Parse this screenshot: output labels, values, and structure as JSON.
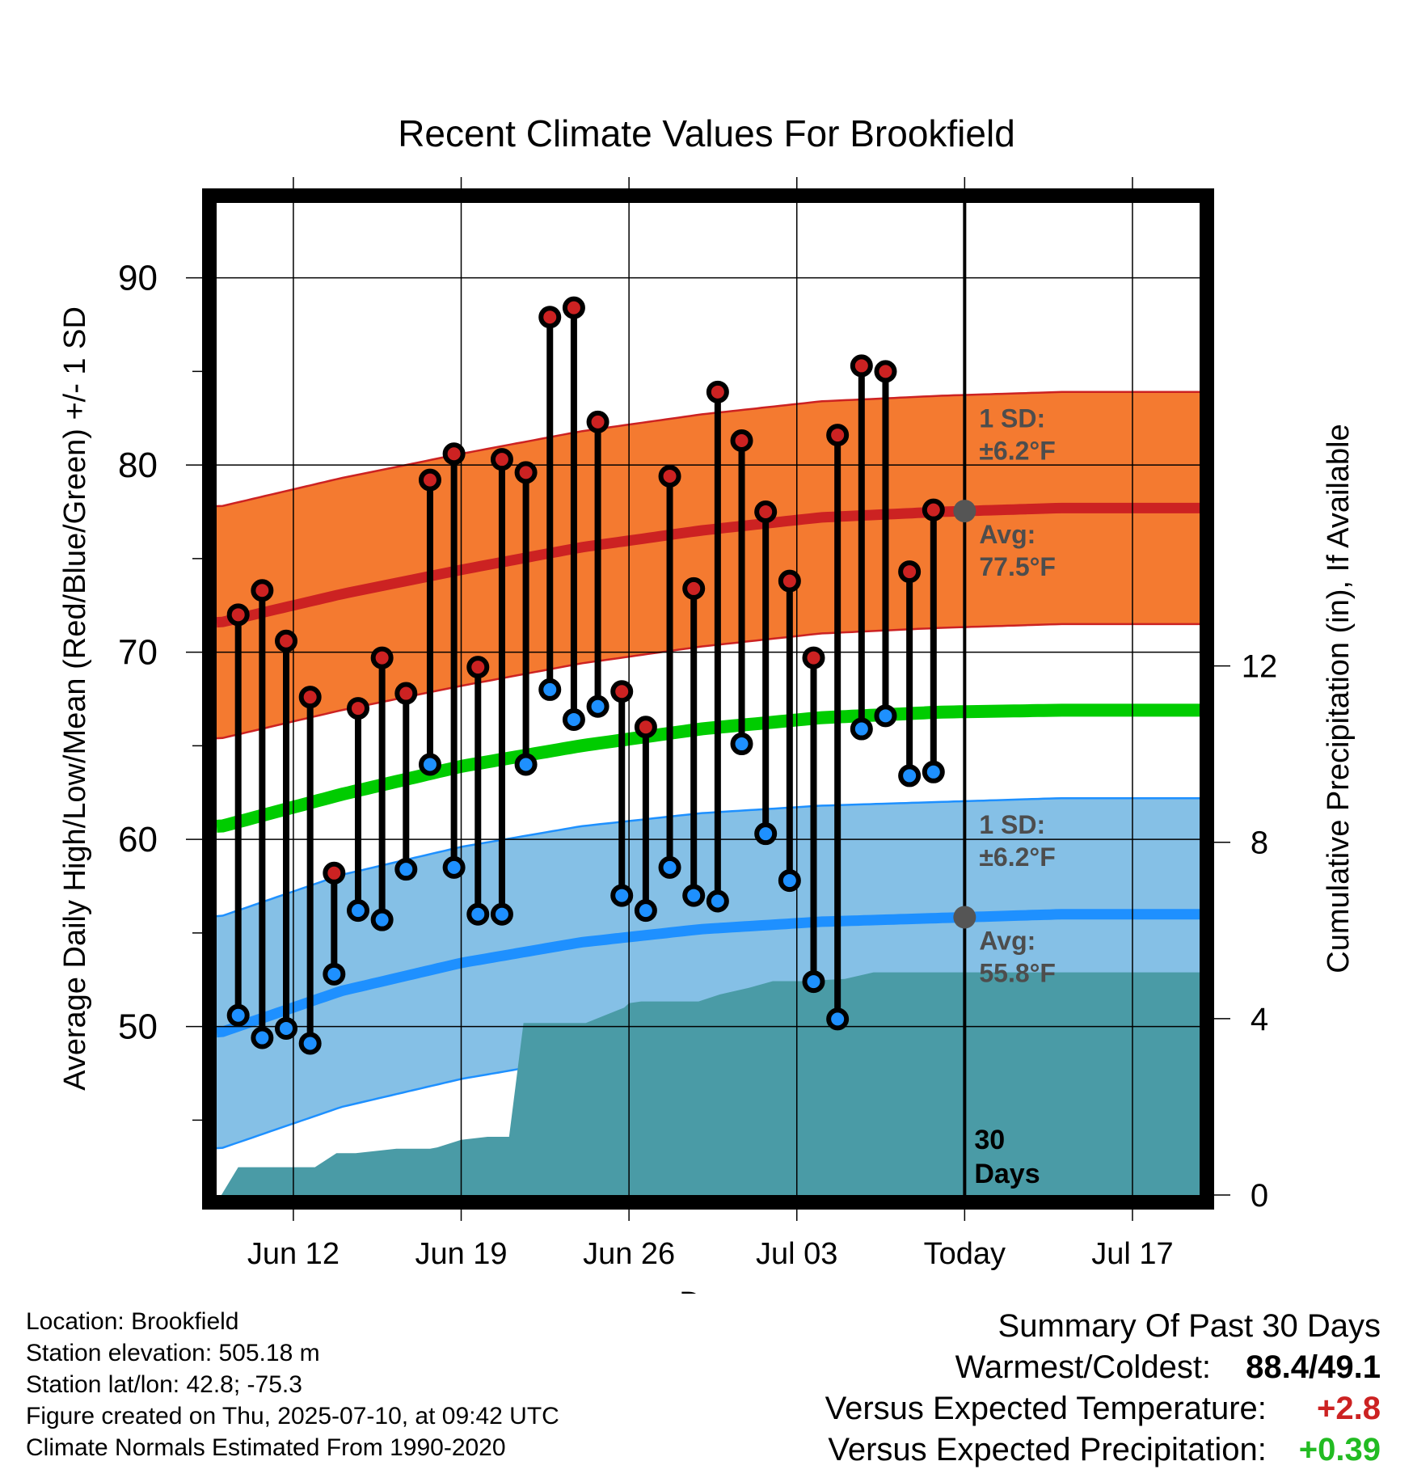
{
  "title": "Recent Climate Values For Brookfield",
  "chart_data": {
    "type": "line",
    "title": "Recent Climate Values For Brookfield",
    "xlabel": "Day",
    "ylabel": "Average Daily High/Low/Mean (Red/Blue/Green) +/- 1 SD",
    "y2label": "Cumulative Precipitation (in), If Available",
    "x_tick_labels": [
      {
        "day": 3,
        "label": "Jun 12"
      },
      {
        "day": 10,
        "label": "Jun 19"
      },
      {
        "day": 17,
        "label": "Jun 26"
      },
      {
        "day": 24,
        "label": "Jul 03"
      },
      {
        "day": 31,
        "label": "Today"
      },
      {
        "day": 38,
        "label": "Jul 17"
      }
    ],
    "xlim": [
      -0.2,
      40.8
    ],
    "ylim": [
      41,
      94
    ],
    "y_ticks": [
      50,
      60,
      70,
      80,
      90
    ],
    "y2_ticks": [
      0,
      4,
      8,
      12
    ],
    "y2lim": [
      0,
      22.5
    ],
    "today_day": 31,
    "today_label": "30 Days",
    "normals": {
      "days": [
        0,
        5,
        10,
        15,
        20,
        25,
        30,
        35,
        40
      ],
      "high_avg": [
        71.6,
        73.1,
        74.4,
        75.6,
        76.5,
        77.2,
        77.5,
        77.7,
        77.7
      ],
      "low_avg": [
        49.7,
        51.9,
        53.4,
        54.5,
        55.2,
        55.6,
        55.8,
        56.0,
        56.0
      ],
      "mean_avg": [
        60.7,
        62.4,
        63.9,
        65.0,
        65.9,
        66.5,
        66.8,
        66.9,
        66.9
      ],
      "high_sd": 6.2,
      "low_sd": 6.2
    },
    "series": [
      {
        "name": "High",
        "color": "#cc2222",
        "days": [
          0.7,
          1.7,
          2.7,
          3.7,
          4.7,
          5.7,
          6.7,
          7.7,
          8.7,
          9.7,
          10.7,
          11.7,
          12.7,
          13.7,
          14.7,
          15.7,
          16.7,
          17.7,
          18.7,
          19.7,
          20.7,
          21.7,
          22.7,
          23.7,
          24.7,
          25.7,
          26.7,
          27.7,
          28.7,
          29.7
        ],
        "values": [
          72.0,
          73.3,
          70.6,
          67.6,
          58.2,
          67.0,
          69.7,
          67.8,
          79.2,
          80.6,
          69.2,
          80.3,
          79.6,
          87.9,
          88.4,
          82.3,
          67.9,
          66.0,
          79.4,
          73.4,
          83.9,
          81.3,
          77.5,
          73.8,
          69.7,
          81.6,
          85.3,
          85.0,
          74.3,
          77.6
        ]
      },
      {
        "name": "Low",
        "color": "#1e90ff",
        "days": [
          0.7,
          1.7,
          2.7,
          3.7,
          4.7,
          5.7,
          6.7,
          7.7,
          8.7,
          9.7,
          10.7,
          11.7,
          12.7,
          13.7,
          14.7,
          15.7,
          16.7,
          17.7,
          18.7,
          19.7,
          20.7,
          21.7,
          22.7,
          23.7,
          24.7,
          25.7,
          26.7,
          27.7,
          28.7,
          29.7
        ],
        "values": [
          50.6,
          49.4,
          49.9,
          49.1,
          52.8,
          56.2,
          55.7,
          58.4,
          64.0,
          58.5,
          56.0,
          56.0,
          64.0,
          68.0,
          66.4,
          67.1,
          57.0,
          56.2,
          58.5,
          57.0,
          56.7,
          65.1,
          60.3,
          57.8,
          52.4,
          50.4,
          65.9,
          66.6,
          63.4,
          63.6
        ]
      },
      {
        "name": "Cumulative Precipitation",
        "color": "#4a9ba6",
        "days": [
          0,
          0.7,
          3.9,
          4.8,
          5.6,
          7.3,
          8.7,
          9.0,
          10.0,
          11.1,
          12.0,
          12.6,
          13.0,
          14.1,
          15.2,
          16.8,
          17.0,
          17.5,
          18.0,
          19.9,
          20.8,
          22.0,
          23.0,
          24.2,
          26.0,
          27.2,
          28.5,
          40.8
        ],
        "values": [
          0,
          0.63,
          0.63,
          0.95,
          0.95,
          1.05,
          1.05,
          1.08,
          1.25,
          1.32,
          1.32,
          3.9,
          3.9,
          3.9,
          3.9,
          4.25,
          4.35,
          4.39,
          4.39,
          4.39,
          4.55,
          4.7,
          4.85,
          4.85,
          4.9,
          5.05,
          5.05,
          5.05
        ]
      }
    ],
    "annotations": [
      {
        "text_line1": "1 SD:",
        "text_line2": "±6.2°F",
        "near": "high-band"
      },
      {
        "text_line1": "Avg:",
        "text_line2": "77.5°F",
        "near": "high-avg"
      },
      {
        "text_line1": "1 SD:",
        "text_line2": "±6.2°F",
        "near": "low-band"
      },
      {
        "text_line1": "Avg:",
        "text_line2": "55.8°F",
        "near": "low-avg"
      }
    ],
    "colors": {
      "high_band": "#f47a30",
      "high_avg": "#cc2222",
      "low_band": "#85c0e6",
      "low_avg": "#1e90ff",
      "mean_avg": "#00cc00",
      "precip": "#4a9ba6",
      "annotation": "#4d4d4d"
    }
  },
  "info": {
    "location": "Location: Brookfield",
    "elevation": "Station elevation: 505.18 m",
    "latlon": "Station lat/lon: 42.8; -75.3",
    "created": "Figure created on Thu, 2025-07-10, at 09:42 UTC",
    "normals": "Climate Normals Estimated From 1990-2020"
  },
  "summary": {
    "heading": "Summary Of Past 30 Days",
    "warmest_coldest_label": "Warmest/Coldest:",
    "warmest_coldest_value": "88.4/49.1",
    "temp_label": "Versus Expected Temperature:",
    "temp_value": "+2.8",
    "temp_color": "#cc2222",
    "precip_label": "Versus Expected Precipitation:",
    "precip_value": "+0.39",
    "precip_color": "#22bb22"
  }
}
